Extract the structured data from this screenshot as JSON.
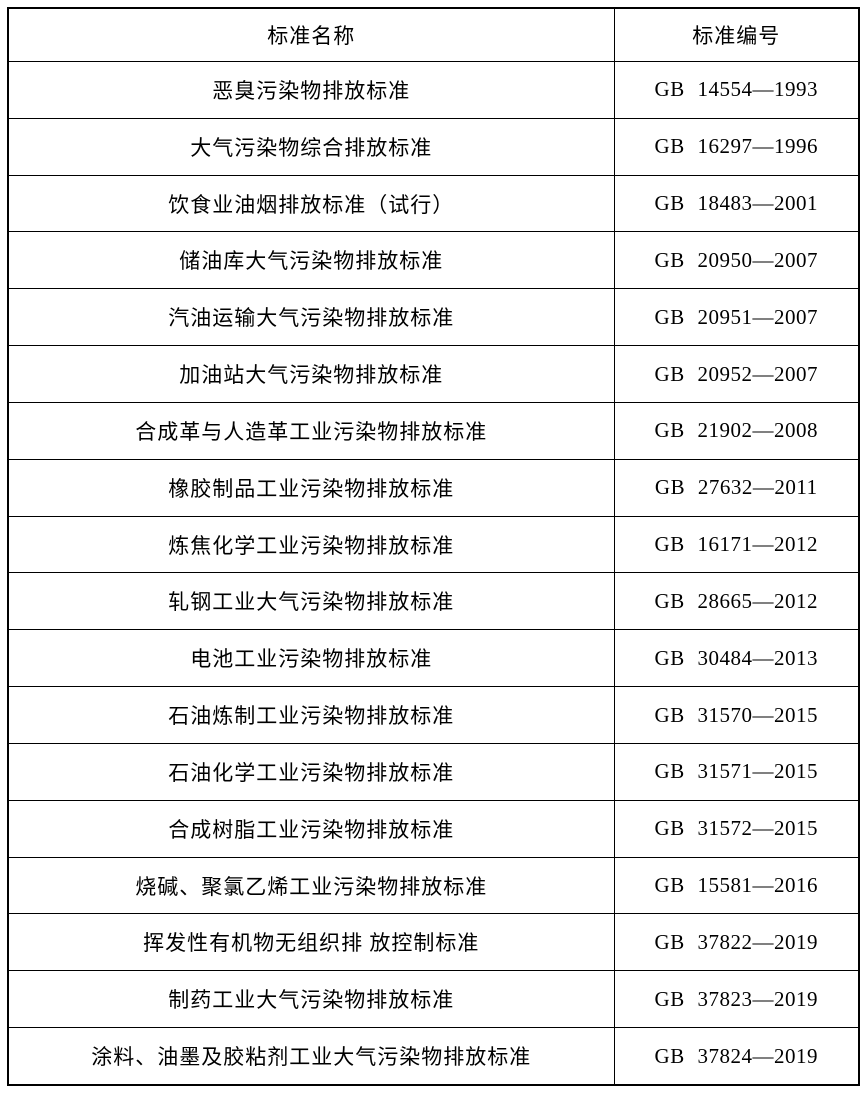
{
  "colors": {
    "background": "#ffffff",
    "border": "#000000",
    "text": "#000000"
  },
  "table": {
    "columns": [
      {
        "label": "标准名称"
      },
      {
        "label": "标准编号"
      }
    ],
    "rows": [
      {
        "name": "恶臭污染物排放标准",
        "code": "GB 14554—1993"
      },
      {
        "name": "大气污染物综合排放标准",
        "code": "GB 16297—1996"
      },
      {
        "name": "饮食业油烟排放标准（试行）",
        "code": "GB 18483—2001"
      },
      {
        "name": "储油库大气污染物排放标准",
        "code": "GB 20950—2007"
      },
      {
        "name": "汽油运输大气污染物排放标准",
        "code": "GB 20951—2007"
      },
      {
        "name": "加油站大气污染物排放标准",
        "code": "GB 20952—2007"
      },
      {
        "name": "合成革与人造革工业污染物排放标准",
        "code": "GB 21902—2008"
      },
      {
        "name": "橡胶制品工业污染物排放标准",
        "code": "GB 27632—2011"
      },
      {
        "name": "炼焦化学工业污染物排放标准",
        "code": "GB 16171—2012"
      },
      {
        "name": "轧钢工业大气污染物排放标准",
        "code": "GB 28665—2012"
      },
      {
        "name": "电池工业污染物排放标准",
        "code": "GB 30484—2013"
      },
      {
        "name": "石油炼制工业污染物排放标准",
        "code": "GB 31570—2015"
      },
      {
        "name": "石油化学工业污染物排放标准",
        "code": "GB 31571—2015"
      },
      {
        "name": "合成树脂工业污染物排放标准",
        "code": "GB 31572—2015"
      },
      {
        "name": "烧碱、聚氯乙烯工业污染物排放标准",
        "code": "GB 15581—2016"
      },
      {
        "name": "挥发性有机物无组织排 放控制标准",
        "code": "GB 37822—2019"
      },
      {
        "name": "制药工业大气污染物排放标准",
        "code": "GB 37823—2019"
      },
      {
        "name": "涂料、油墨及胶粘剂工业大气污染物排放标准",
        "code": "GB 37824—2019"
      }
    ]
  }
}
